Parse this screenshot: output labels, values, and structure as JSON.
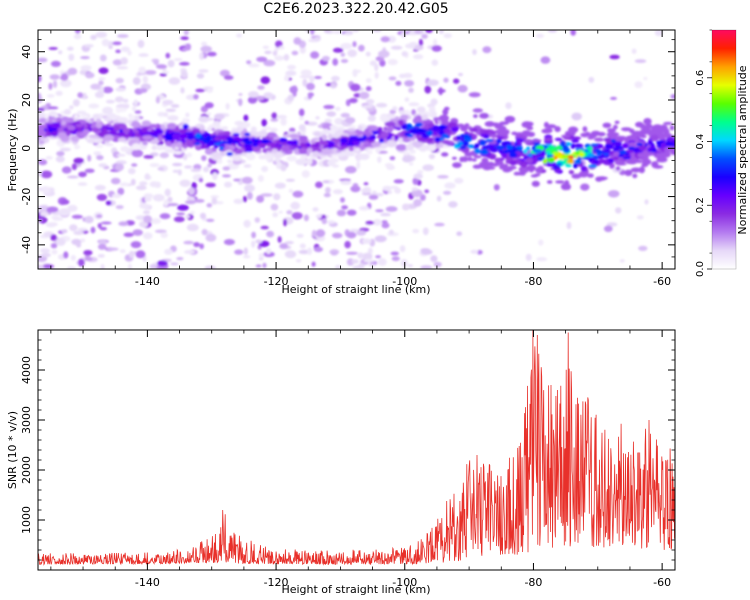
{
  "title": "C2E6.2023.322.20.42.G05",
  "chart_data": [
    {
      "type": "heatmap",
      "xlabel": "Height of straight line (km)",
      "ylabel": "Frequency (Hz)",
      "xlim": [
        -157,
        -58
      ],
      "ylim": [
        -50,
        49
      ],
      "xticks": [
        -140,
        -120,
        -100,
        -80,
        -60
      ],
      "yticks": [
        -40,
        -20,
        0,
        20,
        40
      ],
      "colorbar": {
        "label": "Normalized spectral amplitude",
        "range": [
          0,
          0.75
        ],
        "ticks": [
          "0.0",
          "0.2",
          "0.4",
          "0.6"
        ],
        "colormap": [
          "#ffffff",
          "#e6d8f8",
          "#b47af0",
          "#8a2be2",
          "#6600ff",
          "#1a00ff",
          "#0050ff",
          "#00d8ff",
          "#00ff8c",
          "#5aff00",
          "#e6ff00",
          "#ffa000",
          "#ff2000",
          "#ff0a60"
        ]
      },
      "band": {
        "description_values": "center frequency (Hz) of bright band vs height",
        "x": [
          -157,
          -150,
          -145,
          -140,
          -135,
          -130,
          -125,
          -120,
          -115,
          -110,
          -105,
          -100,
          -95,
          -90,
          -85,
          -80,
          -75,
          -70,
          -65,
          -60,
          -58
        ],
        "center": [
          8,
          8,
          7,
          6,
          5,
          3,
          2,
          2,
          1,
          2,
          5,
          8,
          7,
          3,
          0,
          -1,
          -3,
          -2,
          0,
          2,
          2
        ],
        "peak_amplitude": [
          0.3,
          0.3,
          0.25,
          0.3,
          0.32,
          0.38,
          0.3,
          0.28,
          0.25,
          0.25,
          0.32,
          0.34,
          0.36,
          0.38,
          0.34,
          0.45,
          0.7,
          0.38,
          0.3,
          0.3,
          0.28
        ],
        "width_hz": [
          10,
          10,
          10,
          10,
          10,
          12,
          10,
          10,
          10,
          10,
          10,
          12,
          14,
          16,
          18,
          18,
          18,
          18,
          16,
          14,
          14
        ]
      }
    },
    {
      "type": "line",
      "xlabel": "Height of straight line (km)",
      "ylabel": "SNR (10 * v/v)",
      "xlim": [
        -157,
        -58
      ],
      "ylim": [
        0,
        4800
      ],
      "xticks": [
        -140,
        -120,
        -100,
        -80,
        -60
      ],
      "yticks": [
        1000,
        2000,
        3000,
        4000
      ],
      "series": [
        {
          "color": "#e8302a",
          "envelope_x": [
            -157,
            -140,
            -135,
            -130,
            -128,
            -126,
            -120,
            -110,
            -100,
            -96,
            -93,
            -90,
            -88,
            -85,
            -82,
            -80,
            -78,
            -76,
            -75,
            -74,
            -72,
            -70,
            -68,
            -66,
            -64,
            -62,
            -60,
            -58
          ],
          "envelope_max": [
            330,
            350,
            420,
            650,
            1200,
            700,
            420,
            400,
            450,
            800,
            1500,
            2300,
            2200,
            2100,
            2600,
            4750,
            3900,
            3500,
            4700,
            4000,
            3800,
            3200,
            2900,
            3000,
            2500,
            3000,
            2600,
            2500
          ],
          "envelope_min": [
            110,
            120,
            130,
            150,
            150,
            130,
            120,
            110,
            120,
            130,
            150,
            200,
            250,
            300,
            300,
            350,
            400,
            450,
            500,
            450,
            450,
            450,
            450,
            450,
            400,
            400,
            400,
            400
          ]
        }
      ]
    }
  ]
}
